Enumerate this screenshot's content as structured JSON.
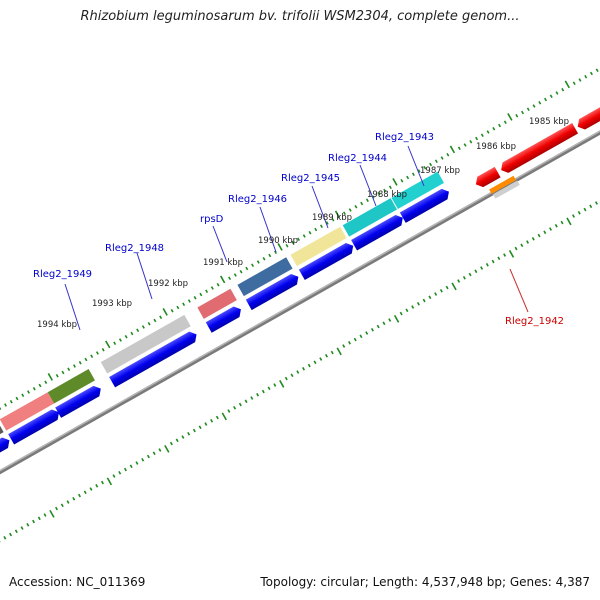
{
  "title": "Rhizobium leguminosarum bv. trifolii WSM2304, complete genom...",
  "footer": {
    "accession": "Accession: NC_011369",
    "info": "Topology: circular; Length: 4,537,948 bp; Genes: 4,387"
  },
  "kbp_labels": [
    {
      "text": "1985 kbp",
      "side": "outer"
    },
    {
      "text": "1986 kbp",
      "side": "outer"
    },
    {
      "text": "1987 kbp",
      "side": "outer"
    },
    {
      "text": "1988 kbp",
      "side": "outer"
    },
    {
      "text": "1989 kbp",
      "side": "outer"
    },
    {
      "text": "1990 kbp",
      "side": "outer"
    },
    {
      "text": "1991 kbp",
      "side": "outer"
    },
    {
      "text": "1992 kbp",
      "side": "outer"
    },
    {
      "text": "1993 kbp",
      "side": "outer"
    },
    {
      "text": "1994 kbp",
      "side": "outer"
    }
  ],
  "gene_labels": [
    {
      "text": "Rleg2_1943",
      "color": "#0000cc"
    },
    {
      "text": "Rleg2_1944",
      "color": "#0000cc"
    },
    {
      "text": "Rleg2_1945",
      "color": "#0000cc"
    },
    {
      "text": "Rleg2_1946",
      "color": "#0000cc"
    },
    {
      "text": "rpsD",
      "color": "#0000cc"
    },
    {
      "text": "Rleg2_1948",
      "color": "#0000cc"
    },
    {
      "text": "Rleg2_1949",
      "color": "#0000cc"
    },
    {
      "text": "Rleg2_1942",
      "color": "#cc0000"
    }
  ],
  "colors": {
    "backbone": "#777777",
    "tick": "#1f8a1f",
    "forward_gene": "#0a0af0",
    "reverse_gene": "#ee1111"
  }
}
